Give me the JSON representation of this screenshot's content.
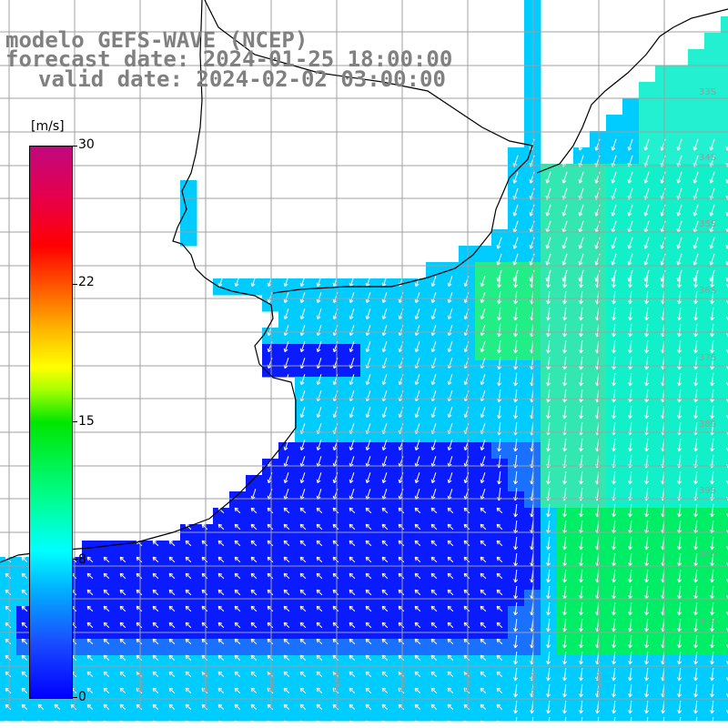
{
  "title": {
    "line1": "modelo GEFS-WAVE (NCEP)",
    "line2": "forecast date: 2024-01-25 18:00:00",
    "line3": "valid date: 2024-02-02 03:00:00"
  },
  "colorbar": {
    "units": "[m/s]",
    "min": 0,
    "max": 30,
    "ticks": [
      "30",
      "22",
      "15",
      "8",
      "0"
    ]
  },
  "lat_labels": [
    "33S",
    "34S",
    "35S",
    "36S",
    "37S",
    "38S",
    "39S",
    "40S",
    "41S"
  ],
  "lon_labels": [
    "64W",
    "62W",
    "60W",
    "58W",
    "56W",
    "54W",
    "52W",
    "50W"
  ],
  "colors": {
    "low_wind": "#0a1cff",
    "mid_wind": "#00ccff",
    "high_wind": "#00ee66",
    "grid": "#a0a0a0",
    "coast": "#000000",
    "arrow": "#ffffff"
  }
}
